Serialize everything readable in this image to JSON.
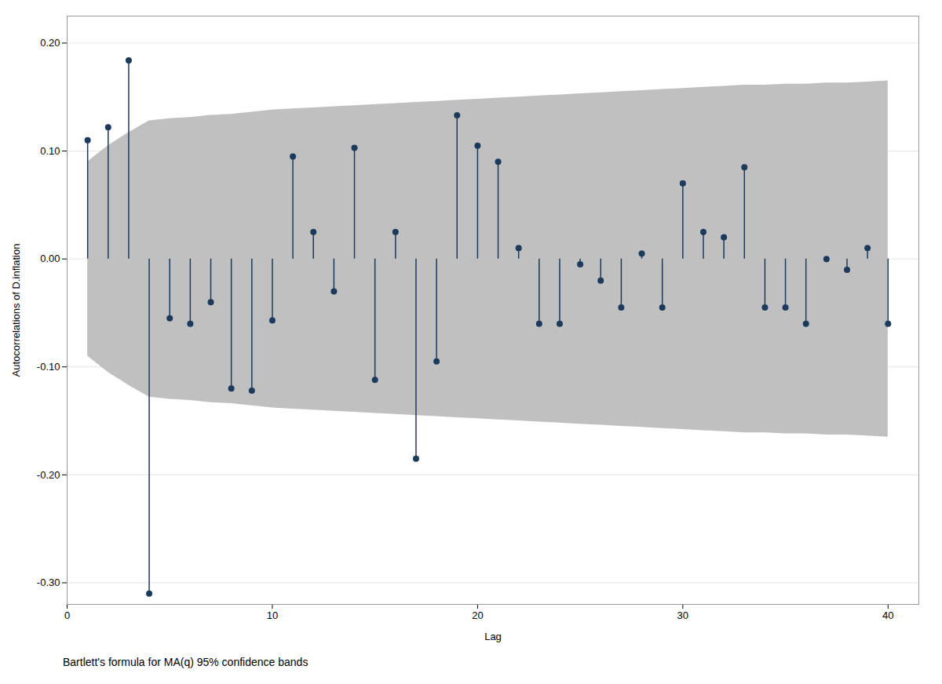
{
  "chart_data": {
    "type": "stem",
    "xlabel": "Lag",
    "ylabel": "Autocorrelations of D.inflation",
    "caption": "Bartlett's formula for MA(q) 95% confidence bands",
    "x": [
      1,
      2,
      3,
      4,
      5,
      6,
      7,
      8,
      9,
      10,
      11,
      12,
      13,
      14,
      15,
      16,
      17,
      18,
      19,
      20,
      21,
      22,
      23,
      24,
      25,
      26,
      27,
      28,
      29,
      30,
      31,
      32,
      33,
      34,
      35,
      36,
      37,
      38,
      39,
      40
    ],
    "series": [
      {
        "type": "area",
        "color": "#c0c0c0",
        "upper": [
          0.09,
          0.105,
          0.117,
          0.128,
          0.13,
          0.131,
          0.133,
          0.134,
          0.136,
          0.138,
          0.139,
          0.14,
          0.141,
          0.142,
          0.143,
          0.144,
          0.145,
          0.146,
          0.147,
          0.148,
          0.149,
          0.15,
          0.151,
          0.152,
          0.153,
          0.154,
          0.155,
          0.156,
          0.157,
          0.158,
          0.159,
          0.16,
          0.161,
          0.161,
          0.162,
          0.162,
          0.163,
          0.163,
          0.164,
          0.165
        ],
        "lower": [
          -0.09,
          -0.105,
          -0.117,
          -0.128,
          -0.13,
          -0.131,
          -0.133,
          -0.134,
          -0.136,
          -0.138,
          -0.139,
          -0.14,
          -0.141,
          -0.142,
          -0.143,
          -0.144,
          -0.145,
          -0.146,
          -0.147,
          -0.148,
          -0.149,
          -0.15,
          -0.151,
          -0.152,
          -0.153,
          -0.154,
          -0.155,
          -0.156,
          -0.157,
          -0.158,
          -0.159,
          -0.16,
          -0.161,
          -0.161,
          -0.162,
          -0.162,
          -0.163,
          -0.163,
          -0.164,
          -0.165
        ]
      },
      {
        "type": "stem",
        "color": "#1b3a5c",
        "marker": "circle",
        "values": [
          0.11,
          0.122,
          0.184,
          -0.31,
          -0.055,
          -0.06,
          -0.04,
          -0.12,
          -0.122,
          -0.057,
          0.095,
          0.025,
          -0.03,
          0.103,
          -0.112,
          0.025,
          -0.185,
          -0.095,
          0.133,
          0.105,
          0.09,
          0.01,
          -0.06,
          -0.06,
          -0.005,
          -0.02,
          -0.045,
          0.005,
          -0.045,
          0.07,
          0.025,
          0.02,
          0.085,
          -0.045,
          -0.045,
          -0.06,
          0.0,
          -0.01,
          0.01,
          -0.06
        ]
      }
    ],
    "xlim": [
      0.0,
      41.5
    ],
    "xticks": [
      0,
      10,
      20,
      30,
      40
    ],
    "ylim": [
      -0.32,
      0.225
    ],
    "yticks": [
      {
        "value": 0.2,
        "label": "0.20"
      },
      {
        "value": 0.1,
        "label": "0.10"
      },
      {
        "value": 0.0,
        "label": "0.00"
      },
      {
        "value": -0.1,
        "label": "-0.10"
      },
      {
        "value": -0.2,
        "label": "-0.20"
      },
      {
        "value": -0.3,
        "label": "-0.30"
      }
    ],
    "grid": "y"
  }
}
